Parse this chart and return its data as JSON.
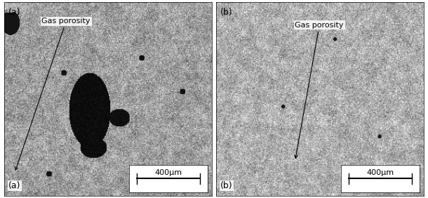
{
  "fig_width": 6.1,
  "fig_height": 2.82,
  "dpi": 100,
  "bg_color": "#ffffff",
  "panel_labels": [
    "(a)",
    "(b)"
  ],
  "annotations": [
    "Gas porosity",
    "Gas porosity"
  ],
  "scale_bar_text": "400μm",
  "noise_seed_a": 42,
  "noise_seed_b": 99,
  "panel_label_fontsize": 9,
  "annotation_fontsize": 8,
  "scalebar_fontsize": 8
}
